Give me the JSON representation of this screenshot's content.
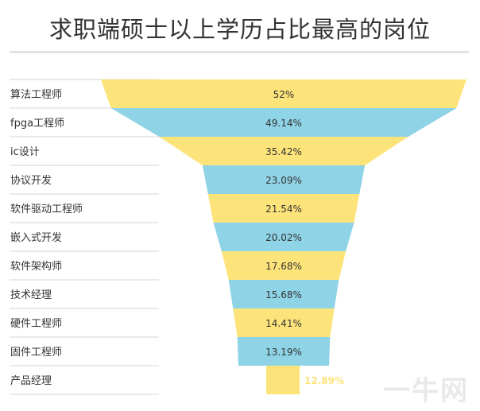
{
  "chart_data": {
    "type": "funnel",
    "title": "求职端硕士以上学历占比最高的岗位",
    "categories": [
      "算法工程师",
      "fpga工程师",
      "ic设计",
      "协议开发",
      "软件驱动工程师",
      "嵌入式开发",
      "软件架构师",
      "技术经理",
      "硬件工程师",
      "固件工程师",
      "产品经理"
    ],
    "values": [
      52,
      49.14,
      35.42,
      23.09,
      21.54,
      20.02,
      17.68,
      15.68,
      14.41,
      13.19,
      12.89
    ],
    "value_labels": [
      "52%",
      "49.14%",
      "35.42%",
      "23.09%",
      "21.54%",
      "20.02%",
      "17.68%",
      "15.68%",
      "14.41%",
      "13.19%",
      "12.89%"
    ],
    "unit": "%",
    "colors": [
      "#fde47a",
      "#8fd3e6"
    ],
    "grid": true
  },
  "watermark": "一牛网"
}
